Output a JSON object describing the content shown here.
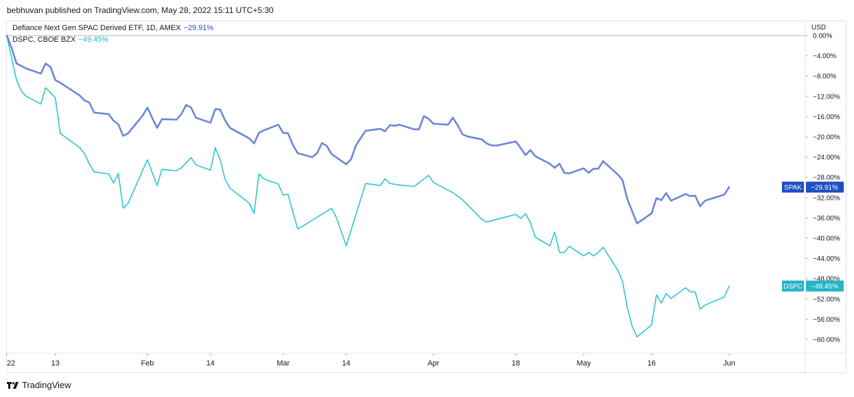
{
  "header": {
    "publisher": "bebhuvan published on TradingView.com, May 28, 2022 15:11 UTC+5:30"
  },
  "legend": {
    "primary": {
      "label": "Defiance Next Gen SPAC Derived ETF, 1D, AMEX",
      "change": "−29.91%"
    },
    "secondary": {
      "label": "DSPC, CBOE BZX",
      "change": "−49.45%"
    }
  },
  "axis": {
    "currency": "USD"
  },
  "footer": {
    "brand": "TradingView"
  },
  "colors": {
    "spak": "#6b86d6",
    "dspc": "#2ec4cf",
    "spak_badge": "#1e4fc2",
    "dspc_badge": "#26b5c4",
    "grid": "#e0e3eb"
  },
  "chart_data": {
    "type": "line",
    "ylim": [
      -62,
      0
    ],
    "y_ticks": [
      0,
      -4,
      -8,
      -12,
      -16,
      -20,
      -24,
      -28,
      -32,
      -36,
      -40,
      -44,
      -48,
      -52,
      -56,
      -60
    ],
    "y_tick_labels": [
      "0.00%",
      "−4.00%",
      "−8.00%",
      "−12.00%",
      "−16.00%",
      "−20.00%",
      "−24.00%",
      "−28.00%",
      "−32.00%",
      "−36.00%",
      "−40.00%",
      "−44.00%",
      "−48.00%",
      "−52.00%",
      "−56.00%",
      "−60.00%"
    ],
    "x_ticks": [
      {
        "label": "22",
        "date": "2022-01-03"
      },
      {
        "label": "13",
        "date": "2022-01-13"
      },
      {
        "label": "Feb",
        "date": "2022-02-01"
      },
      {
        "label": "14",
        "date": "2022-02-14"
      },
      {
        "label": "Mar",
        "date": "2022-03-01"
      },
      {
        "label": "14",
        "date": "2022-03-14"
      },
      {
        "label": "Apr",
        "date": "2022-04-01"
      },
      {
        "label": "18",
        "date": "2022-04-18"
      },
      {
        "label": "May",
        "date": "2022-05-02"
      },
      {
        "label": "16",
        "date": "2022-05-16"
      },
      {
        "label": "Jun",
        "date": "2022-06-01"
      }
    ],
    "x_range": [
      "2022-01-03",
      "2022-06-10"
    ],
    "series": [
      {
        "name": "SPAK",
        "last_label": "−29.91%",
        "points": [
          [
            "2022-01-03",
            0
          ],
          [
            "2022-01-04",
            -2.5
          ],
          [
            "2022-01-05",
            -5.5
          ],
          [
            "2022-01-06",
            -6
          ],
          [
            "2022-01-07",
            -6.5
          ],
          [
            "2022-01-10",
            -7.5
          ],
          [
            "2022-01-11",
            -5.5
          ],
          [
            "2022-01-12",
            -6.2
          ],
          [
            "2022-01-13",
            -8.8
          ],
          [
            "2022-01-14",
            -9.3
          ],
          [
            "2022-01-18",
            -11.8
          ],
          [
            "2022-01-19",
            -12.8
          ],
          [
            "2022-01-20",
            -13.2
          ],
          [
            "2022-01-21",
            -15.2
          ],
          [
            "2022-01-24",
            -15.5
          ],
          [
            "2022-01-25",
            -16.8
          ],
          [
            "2022-01-26",
            -17.5
          ],
          [
            "2022-01-27",
            -19.8
          ],
          [
            "2022-01-28",
            -19.3
          ],
          [
            "2022-01-31",
            -15.8
          ],
          [
            "2022-02-01",
            -14.2
          ],
          [
            "2022-02-02",
            -16.3
          ],
          [
            "2022-02-03",
            -18.2
          ],
          [
            "2022-02-04",
            -16.5
          ],
          [
            "2022-02-07",
            -16.6
          ],
          [
            "2022-02-08",
            -15.5
          ],
          [
            "2022-02-09",
            -13.7
          ],
          [
            "2022-02-10",
            -14.2
          ],
          [
            "2022-02-11",
            -16.2
          ],
          [
            "2022-02-14",
            -17.2
          ],
          [
            "2022-02-15",
            -14.5
          ],
          [
            "2022-02-16",
            -14.6
          ],
          [
            "2022-02-17",
            -16.7
          ],
          [
            "2022-02-18",
            -18.2
          ],
          [
            "2022-02-22",
            -20.3
          ],
          [
            "2022-02-23",
            -21.3
          ],
          [
            "2022-02-24",
            -19.2
          ],
          [
            "2022-02-25",
            -18.7
          ],
          [
            "2022-02-28",
            -17.6
          ],
          [
            "2022-03-01",
            -19.2
          ],
          [
            "2022-03-02",
            -19.3
          ],
          [
            "2022-03-03",
            -21.6
          ],
          [
            "2022-03-04",
            -23.2
          ],
          [
            "2022-03-07",
            -24
          ],
          [
            "2022-03-08",
            -23.2
          ],
          [
            "2022-03-09",
            -21.2
          ],
          [
            "2022-03-10",
            -21.8
          ],
          [
            "2022-03-11",
            -23.4
          ],
          [
            "2022-03-14",
            -25.4
          ],
          [
            "2022-03-15",
            -24.4
          ],
          [
            "2022-03-16",
            -21.7
          ],
          [
            "2022-03-17",
            -20.2
          ],
          [
            "2022-03-18",
            -18.8
          ],
          [
            "2022-03-21",
            -18.4
          ],
          [
            "2022-03-22",
            -18.9
          ],
          [
            "2022-03-23",
            -17.7
          ],
          [
            "2022-03-24",
            -17.8
          ],
          [
            "2022-03-25",
            -17.6
          ],
          [
            "2022-03-28",
            -18.5
          ],
          [
            "2022-03-29",
            -18.5
          ],
          [
            "2022-03-30",
            -15.9
          ],
          [
            "2022-03-31",
            -16.4
          ],
          [
            "2022-04-01",
            -17.4
          ],
          [
            "2022-04-04",
            -17.6
          ],
          [
            "2022-04-05",
            -16.2
          ],
          [
            "2022-04-06",
            -17.7
          ],
          [
            "2022-04-07",
            -19.5
          ],
          [
            "2022-04-08",
            -19.9
          ],
          [
            "2022-04-11",
            -20.5
          ],
          [
            "2022-04-12",
            -21.3
          ],
          [
            "2022-04-13",
            -21.7
          ],
          [
            "2022-04-14",
            -21.7
          ],
          [
            "2022-04-18",
            -20.9
          ],
          [
            "2022-04-19",
            -22.2
          ],
          [
            "2022-04-20",
            -23.6
          ],
          [
            "2022-04-21",
            -22.6
          ],
          [
            "2022-04-22",
            -23.8
          ],
          [
            "2022-04-25",
            -25.3
          ],
          [
            "2022-04-26",
            -26.1
          ],
          [
            "2022-04-27",
            -25.3
          ],
          [
            "2022-04-28",
            -27.1
          ],
          [
            "2022-04-29",
            -27.2
          ],
          [
            "2022-05-02",
            -26.2
          ],
          [
            "2022-05-03",
            -27.1
          ],
          [
            "2022-05-04",
            -26.3
          ],
          [
            "2022-05-05",
            -26.3
          ],
          [
            "2022-05-06",
            -24.8
          ],
          [
            "2022-05-09",
            -27.4
          ],
          [
            "2022-05-10",
            -28.5
          ],
          [
            "2022-05-11",
            -32.3
          ],
          [
            "2022-05-12",
            -34.7
          ],
          [
            "2022-05-13",
            -37.1
          ],
          [
            "2022-05-16",
            -35.1
          ],
          [
            "2022-05-17",
            -32.1
          ],
          [
            "2022-05-18",
            -32.5
          ],
          [
            "2022-05-19",
            -31.1
          ],
          [
            "2022-05-20",
            -32.6
          ],
          [
            "2022-05-23",
            -31.3
          ],
          [
            "2022-05-24",
            -31.7
          ],
          [
            "2022-05-25",
            -31.6
          ],
          [
            "2022-05-26",
            -33.7
          ],
          [
            "2022-05-27",
            -32.6
          ],
          [
            "2022-05-31",
            -31.4
          ],
          [
            "2022-06-01",
            -29.91
          ]
        ]
      },
      {
        "name": "DSPC",
        "last_label": "−49.45%",
        "points": [
          [
            "2022-01-03",
            0
          ],
          [
            "2022-01-04",
            -4.5
          ],
          [
            "2022-01-05",
            -8.8
          ],
          [
            "2022-01-06",
            -11
          ],
          [
            "2022-01-07",
            -12
          ],
          [
            "2022-01-10",
            -13.5
          ],
          [
            "2022-01-11",
            -10.3
          ],
          [
            "2022-01-12",
            -11.3
          ],
          [
            "2022-01-13",
            -12.3
          ],
          [
            "2022-01-14",
            -19.3
          ],
          [
            "2022-01-18",
            -22.1
          ],
          [
            "2022-01-19",
            -23.3
          ],
          [
            "2022-01-20",
            -25.3
          ],
          [
            "2022-01-21",
            -26.9
          ],
          [
            "2022-01-24",
            -27.3
          ],
          [
            "2022-01-25",
            -29.1
          ],
          [
            "2022-01-26",
            -27.2
          ],
          [
            "2022-01-27",
            -34.1
          ],
          [
            "2022-01-28",
            -33.1
          ],
          [
            "2022-01-31",
            -26.6
          ],
          [
            "2022-02-01",
            -24.5
          ],
          [
            "2022-02-02",
            -27.1
          ],
          [
            "2022-02-03",
            -29.6
          ],
          [
            "2022-02-04",
            -26.4
          ],
          [
            "2022-02-07",
            -26.7
          ],
          [
            "2022-02-08",
            -26.1
          ],
          [
            "2022-02-09",
            -25.1
          ],
          [
            "2022-02-10",
            -24.1
          ],
          [
            "2022-02-11",
            -25.5
          ],
          [
            "2022-02-14",
            -26.6
          ],
          [
            "2022-02-15",
            -22.1
          ],
          [
            "2022-02-16",
            -24.5
          ],
          [
            "2022-02-17",
            -28.3
          ],
          [
            "2022-02-18",
            -30.1
          ],
          [
            "2022-02-22",
            -33.1
          ],
          [
            "2022-02-23",
            -35.1
          ],
          [
            "2022-02-24",
            -27.3
          ],
          [
            "2022-02-25",
            -28.3
          ],
          [
            "2022-02-28",
            -29.3
          ],
          [
            "2022-03-01",
            -31.5
          ],
          [
            "2022-03-02",
            -31.3
          ],
          [
            "2022-03-03",
            -34.8
          ],
          [
            "2022-03-04",
            -38.2
          ],
          [
            "2022-03-11",
            -34.1
          ],
          [
            "2022-03-12",
            -36
          ],
          [
            "2022-03-14",
            -41.5
          ],
          [
            "2022-03-18",
            -29.2
          ],
          [
            "2022-03-21",
            -29.6
          ],
          [
            "2022-03-22",
            -28.3
          ],
          [
            "2022-03-23",
            -29.2
          ],
          [
            "2022-03-25",
            -29.5
          ],
          [
            "2022-03-28",
            -29.8
          ],
          [
            "2022-03-31",
            -27.6
          ],
          [
            "2022-04-01",
            -29
          ],
          [
            "2022-04-05",
            -31
          ],
          [
            "2022-04-07",
            -32.4
          ],
          [
            "2022-04-11",
            -36.3
          ],
          [
            "2022-04-12",
            -36.8
          ],
          [
            "2022-04-18",
            -35.3
          ],
          [
            "2022-04-19",
            -36.1
          ],
          [
            "2022-04-20",
            -35.2
          ],
          [
            "2022-04-21",
            -36.9
          ],
          [
            "2022-04-22",
            -39.8
          ],
          [
            "2022-04-25",
            -41.5
          ],
          [
            "2022-04-26",
            -38.8
          ],
          [
            "2022-04-27",
            -42.8
          ],
          [
            "2022-04-28",
            -42.8
          ],
          [
            "2022-04-29",
            -41.6
          ],
          [
            "2022-05-02",
            -43.5
          ],
          [
            "2022-05-03",
            -42.8
          ],
          [
            "2022-05-04",
            -43.5
          ],
          [
            "2022-05-05",
            -42.8
          ],
          [
            "2022-05-06",
            -41.8
          ],
          [
            "2022-05-09",
            -46.3
          ],
          [
            "2022-05-10",
            -48.5
          ],
          [
            "2022-05-11",
            -53.7
          ],
          [
            "2022-05-12",
            -57.4
          ],
          [
            "2022-05-13",
            -59.5
          ],
          [
            "2022-05-16",
            -57.1
          ],
          [
            "2022-05-17",
            -51.2
          ],
          [
            "2022-05-18",
            -52.8
          ],
          [
            "2022-05-19",
            -50.9
          ],
          [
            "2022-05-20",
            -51.9
          ],
          [
            "2022-05-23",
            -49.8
          ],
          [
            "2022-05-24",
            -50.6
          ],
          [
            "2022-05-25",
            -50.6
          ],
          [
            "2022-05-26",
            -54
          ],
          [
            "2022-05-27",
            -53.2
          ],
          [
            "2022-05-31",
            -51.6
          ],
          [
            "2022-06-01",
            -49.45
          ]
        ]
      }
    ]
  }
}
